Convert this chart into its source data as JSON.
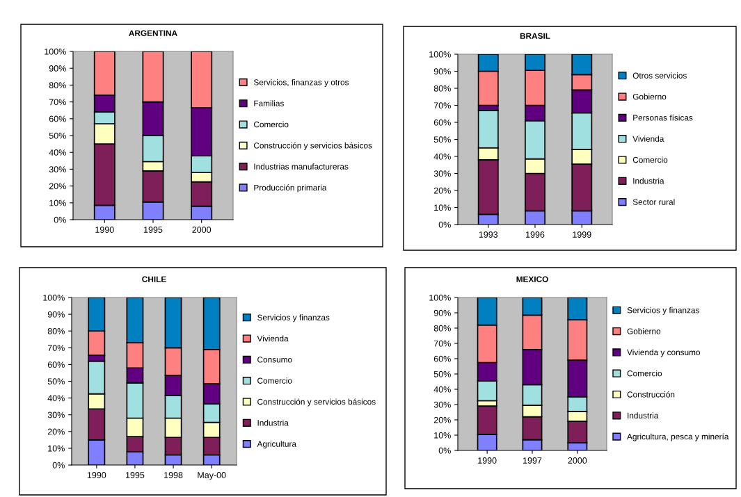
{
  "chart_data": [
    {
      "type": "bar",
      "stacked": true,
      "title": "ARGENTINA",
      "categories": [
        "1990",
        "1995",
        "2000"
      ],
      "ylim": [
        0,
        100
      ],
      "yticks": [
        {
          "value": 0,
          "label": "0%"
        },
        {
          "value": 10,
          "label": "10%"
        },
        {
          "value": 20,
          "label": "20%"
        },
        {
          "value": 30,
          "label": "30%"
        },
        {
          "value": 40,
          "label": "40%"
        },
        {
          "value": 50,
          "label": "50%"
        },
        {
          "value": 60,
          "label": "60%"
        },
        {
          "value": 70,
          "label": "70%"
        },
        {
          "value": 80,
          "label": "80%"
        },
        {
          "value": 90,
          "label": "90%"
        },
        {
          "value": 100,
          "label": "100%"
        }
      ],
      "grid": false,
      "legend": "right",
      "series": [
        {
          "name": "Producción primaria",
          "color": "#8080ff",
          "values": [
            8.5,
            10.5,
            8
          ]
        },
        {
          "name": "Industrias manufactureras",
          "color": "#7f1f5a",
          "values": [
            36.5,
            18.5,
            14.5
          ]
        },
        {
          "name": "Construcción y servicios básicos",
          "color": "#ffffc0",
          "values": [
            12,
            5.5,
            5.5
          ]
        },
        {
          "name": "Comercio",
          "color": "#a0e0e0",
          "values": [
            7,
            15.5,
            10
          ]
        },
        {
          "name": "Familias",
          "color": "#600080",
          "values": [
            10,
            20,
            28.5
          ]
        },
        {
          "name": "Servicios, finanzas y otros",
          "color": "#ff8080",
          "values": [
            26,
            30,
            33.5
          ]
        }
      ]
    },
    {
      "type": "bar",
      "stacked": true,
      "title": "BRASIL",
      "categories": [
        "1993",
        "1996",
        "1999"
      ],
      "ylim": [
        0,
        100
      ],
      "yticks": [
        {
          "value": 0,
          "label": "0%"
        },
        {
          "value": 10,
          "label": "10%"
        },
        {
          "value": 20,
          "label": "20%"
        },
        {
          "value": 30,
          "label": "30%"
        },
        {
          "value": 40,
          "label": "40%"
        },
        {
          "value": 50,
          "label": "50%"
        },
        {
          "value": 60,
          "label": "60%"
        },
        {
          "value": 70,
          "label": "70%"
        },
        {
          "value": 80,
          "label": "80%"
        },
        {
          "value": 90,
          "label": "90%"
        },
        {
          "value": 100,
          "label": "100%"
        }
      ],
      "grid": false,
      "legend": "right",
      "series": [
        {
          "name": "Sector rural",
          "color": "#8080ff",
          "values": [
            6,
            8,
            8
          ]
        },
        {
          "name": "Industria",
          "color": "#7f1f5a",
          "values": [
            32,
            22,
            27.5
          ]
        },
        {
          "name": "Comercio",
          "color": "#ffffc0",
          "values": [
            7,
            8.5,
            8.5
          ]
        },
        {
          "name": "Vivienda",
          "color": "#a0e0e0",
          "values": [
            22,
            22.5,
            21.5
          ]
        },
        {
          "name": "Personas físicas",
          "color": "#600080",
          "values": [
            3,
            9,
            13.5
          ]
        },
        {
          "name": "Gobierno",
          "color": "#ff8080",
          "values": [
            20,
            20.5,
            9
          ]
        },
        {
          "name": "Otros servicios",
          "color": "#0080c0",
          "values": [
            10,
            9.5,
            12
          ]
        }
      ]
    },
    {
      "type": "bar",
      "stacked": true,
      "title": "CHILE",
      "categories": [
        "1990",
        "1995",
        "1998",
        "May-00"
      ],
      "ylim": [
        0,
        100
      ],
      "yticks": [
        {
          "value": 0,
          "label": "0%"
        },
        {
          "value": 10,
          "label": "10%"
        },
        {
          "value": 20,
          "label": "20%"
        },
        {
          "value": 30,
          "label": "30%"
        },
        {
          "value": 40,
          "label": "40%"
        },
        {
          "value": 50,
          "label": "50%"
        },
        {
          "value": 60,
          "label": "60%"
        },
        {
          "value": 70,
          "label": "70%"
        },
        {
          "value": 80,
          "label": "80%"
        },
        {
          "value": 90,
          "label": "90%"
        },
        {
          "value": 100,
          "label": "100%"
        }
      ],
      "grid": false,
      "legend": "right",
      "series": [
        {
          "name": "Agricultura",
          "color": "#8080ff",
          "values": [
            15,
            8,
            6,
            6
          ]
        },
        {
          "name": "Industria",
          "color": "#7f1f5a",
          "values": [
            18.5,
            9,
            10.5,
            10.5
          ]
        },
        {
          "name": "Construcción y servicios básicos",
          "color": "#ffffc0",
          "values": [
            9,
            11,
            11.5,
            9
          ]
        },
        {
          "name": "Comercio",
          "color": "#a0e0e0",
          "values": [
            19.5,
            21,
            13.5,
            11
          ]
        },
        {
          "name": "Consumo",
          "color": "#600080",
          "values": [
            3.5,
            9,
            12,
            12
          ]
        },
        {
          "name": "Vivienda",
          "color": "#ff8080",
          "values": [
            14.5,
            15,
            16.5,
            20.5
          ]
        },
        {
          "name": "Servicios y finanzas",
          "color": "#0080c0",
          "values": [
            20,
            27,
            30,
            31
          ]
        }
      ]
    },
    {
      "type": "bar",
      "stacked": true,
      "title": "MEXICO",
      "categories": [
        "1990",
        "1997",
        "2000"
      ],
      "ylim": [
        0,
        100
      ],
      "yticks": [
        {
          "value": 0,
          "label": "0%"
        },
        {
          "value": 10,
          "label": "10%"
        },
        {
          "value": 20,
          "label": "20%"
        },
        {
          "value": 30,
          "label": "30%"
        },
        {
          "value": 40,
          "label": "40%"
        },
        {
          "value": 50,
          "label": "50%"
        },
        {
          "value": 60,
          "label": "60%"
        },
        {
          "value": 70,
          "label": "70%"
        },
        {
          "value": 80,
          "label": "80%"
        },
        {
          "value": 90,
          "label": "90%"
        },
        {
          "value": 100,
          "label": "100%"
        }
      ],
      "grid": false,
      "legend": "right",
      "series": [
        {
          "name": "Agricultura, pesca y minería",
          "color": "#8080ff",
          "values": [
            10.5,
            7,
            5
          ]
        },
        {
          "name": "Industria",
          "color": "#7f1f5a",
          "values": [
            18.5,
            15,
            14
          ]
        },
        {
          "name": "Construcción",
          "color": "#ffffc0",
          "values": [
            3.5,
            7.5,
            6.5
          ]
        },
        {
          "name": "Comercio",
          "color": "#a0e0e0",
          "values": [
            13,
            13.5,
            9.5
          ]
        },
        {
          "name": "Vivienda y consumo",
          "color": "#600080",
          "values": [
            12,
            23,
            24
          ]
        },
        {
          "name": "Gobierno",
          "color": "#ff8080",
          "values": [
            24.5,
            22.5,
            26.5
          ]
        },
        {
          "name": "Servicios y finanzas",
          "color": "#0080c0",
          "values": [
            18,
            11.5,
            14.5
          ]
        }
      ]
    }
  ]
}
